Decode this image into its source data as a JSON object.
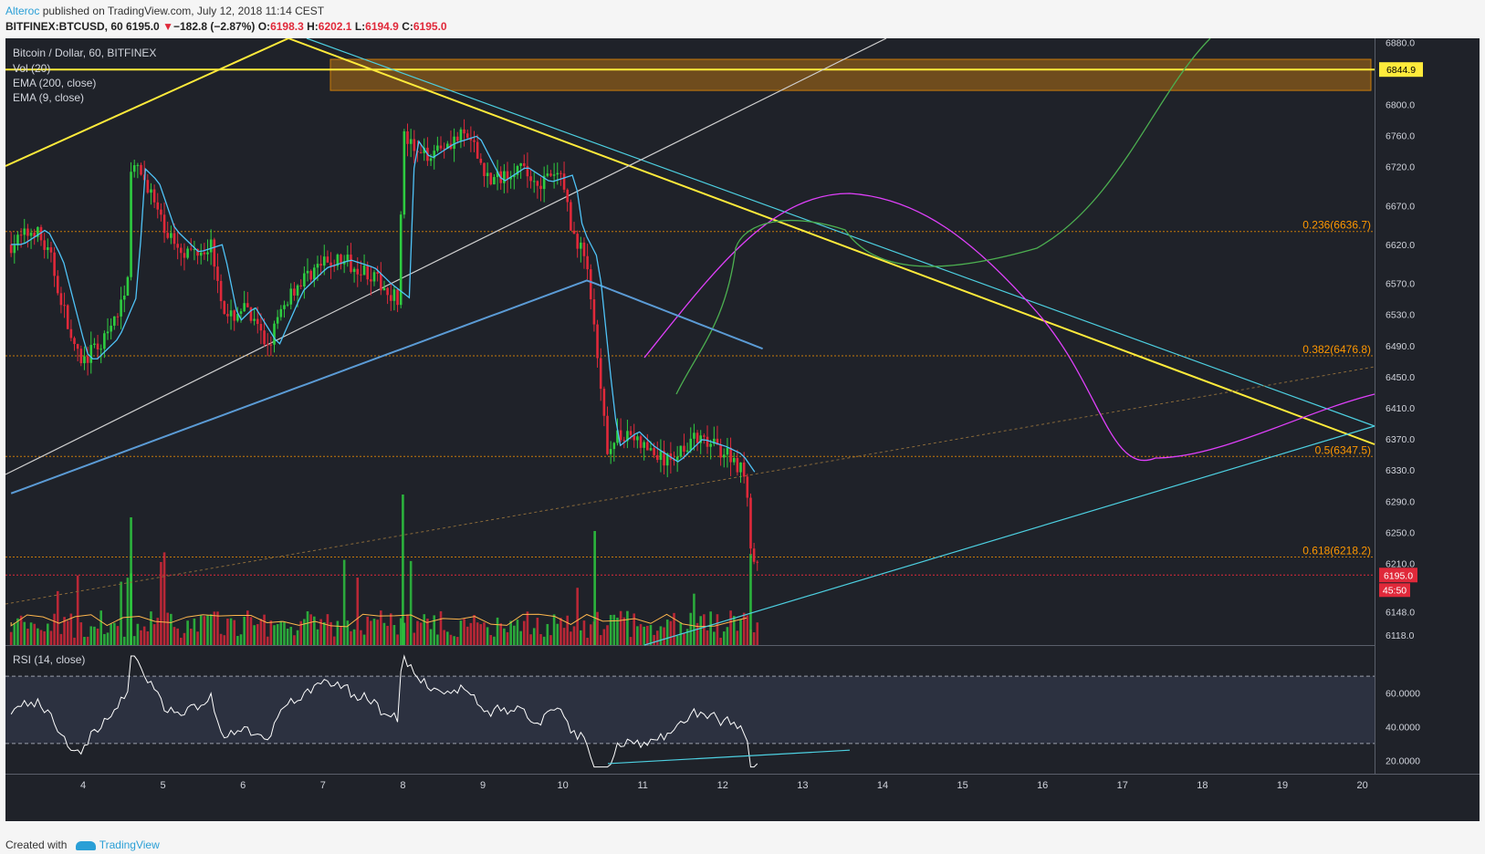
{
  "header": {
    "author": "Alteroc",
    "published_text": " published on TradingView.com, July 12, 2018 11:14 CEST",
    "symbol": "BITFINEX:BTCUSD, 60",
    "price": "6195.0",
    "change_arrow": "▼",
    "change": "−182.8 (−2.87%)",
    "o_label": "O:",
    "o_value": "6198.3",
    "h_label": "H:",
    "h_value": "6202.1",
    "l_label": "L:",
    "l_value": "6194.9",
    "c_label": "C:",
    "c_value": "6195.0"
  },
  "legend": {
    "title": "Bitcoin / Dollar, 60, BITFINEX",
    "vol": "Vol (20)",
    "ema200": "EMA (200, close)",
    "ema9": "EMA (9, close)",
    "rsi": "RSI (14, close)"
  },
  "footer": {
    "created_with": "Created with",
    "brand": "TradingView"
  },
  "colors": {
    "bg": "#1f2229",
    "up": "#26a69a",
    "green_candle": "#2ecc40",
    "red_candle": "#e0293a",
    "ema200": "#5b9bd5",
    "ema9": "#4fc3f7",
    "yellow": "#ffeb3b",
    "cyan": "#4dd0e1",
    "magenta": "#e040fb",
    "green_line": "#4caf50",
    "fib": "#ff9800",
    "rsi": "#ffffff"
  },
  "chart_data": {
    "type": "candlestick",
    "x_tick_labels": [
      "4",
      "5",
      "6",
      "7",
      "8",
      "9",
      "10",
      "11",
      "12",
      "13",
      "14",
      "15",
      "16",
      "17",
      "18",
      "19",
      "20"
    ],
    "y_tick_labels": [
      "6880.0",
      "6800.0",
      "6760.0",
      "6720.0",
      "6670.0",
      "6620.0",
      "6570.0",
      "6530.0",
      "6490.0",
      "6450.0",
      "6410.0",
      "6370.0",
      "6330.0",
      "6290.0",
      "6250.0",
      "6210.0",
      "6148.0",
      "6118.0"
    ],
    "ylim": [
      6105,
      6885
    ],
    "price_labels": {
      "resistance": "6844.9",
      "last": "6195.0",
      "countdown": "45:50"
    },
    "resistance_zone": [
      6818,
      6858
    ],
    "fib_levels": [
      {
        "label": "0.236(6636.7)",
        "value": 6636.7
      },
      {
        "label": "0.382(6476.8)",
        "value": 6476.8
      },
      {
        "label": "0.5(6347.5)",
        "value": 6347.5
      },
      {
        "label": "0.618(6218.2)",
        "value": 6218.2
      }
    ],
    "rsi": {
      "tick_labels": [
        "60.0000",
        "40.0000",
        "20.0000"
      ],
      "ylim": [
        12,
        88
      ],
      "bands": [
        70,
        30
      ]
    }
  }
}
